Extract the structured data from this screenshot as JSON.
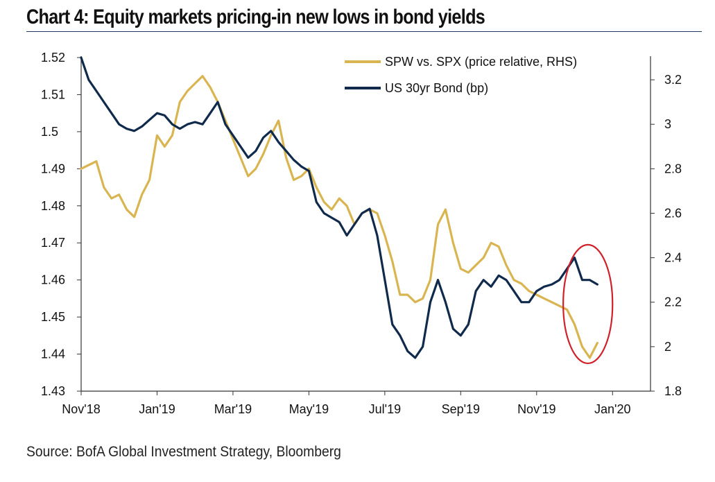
{
  "title": "Chart 4: Equity markets pricing-in new lows in bond yields",
  "source": "Source: BofA Global Investment Strategy, Bloomberg",
  "colors": {
    "spw_series": "#d9b552",
    "bond_series": "#102a4c",
    "highlight_circle": "#d0212b",
    "axis": "#333333",
    "title_rule": "#1f3b60"
  },
  "chart_data": {
    "type": "line",
    "title": "Chart 4: Equity markets pricing-in new lows in bond yields",
    "legend_position": "top-right",
    "grid": false,
    "x_axis": {
      "ticks": [
        "Nov'18",
        "Jan'19",
        "Mar'19",
        "May'19",
        "Jul'19",
        "Sep'19",
        "Nov'19",
        "Jan'20"
      ],
      "range": [
        "Nov'18",
        "Jan'20"
      ]
    },
    "y_left": {
      "range": [
        1.43,
        1.52
      ],
      "ticks": [
        "1.43",
        "1.44",
        "1.45",
        "1.46",
        "1.47",
        "1.48",
        "1.49",
        "1.5",
        "1.51",
        "1.52"
      ]
    },
    "y_right": {
      "range": [
        1.8,
        3.3
      ],
      "ticks": [
        "1.8",
        "2",
        "2.2",
        "2.4",
        "2.6",
        "2.8",
        "3",
        "3.2"
      ]
    },
    "annotation": {
      "type": "ellipse",
      "color": "#d0212b",
      "x_range": [
        12.7,
        14.0
      ],
      "y_left_range": [
        1.4375,
        1.4695
      ]
    },
    "series": [
      {
        "name": "SPW vs.  SPX (price relative, RHS)",
        "axis": "left",
        "color": "#d9b552",
        "x": [
          0.0,
          0.2,
          0.4,
          0.6,
          0.8,
          1.0,
          1.2,
          1.4,
          1.6,
          1.8,
          2.0,
          2.2,
          2.4,
          2.6,
          2.8,
          3.0,
          3.2,
          3.4,
          3.6,
          3.8,
          4.0,
          4.2,
          4.4,
          4.6,
          4.8,
          5.0,
          5.2,
          5.4,
          5.6,
          5.8,
          6.0,
          6.2,
          6.4,
          6.6,
          6.8,
          7.0,
          7.2,
          7.4,
          7.6,
          7.8,
          8.0,
          8.2,
          8.4,
          8.6,
          8.8,
          9.0,
          9.2,
          9.4,
          9.6,
          9.8,
          10.0,
          10.2,
          10.4,
          10.6,
          10.8,
          11.0,
          11.2,
          11.4,
          11.6,
          11.8,
          12.0,
          12.2,
          12.4,
          12.6,
          12.8,
          13.0,
          13.2,
          13.4,
          13.6
        ],
        "values": [
          1.49,
          1.491,
          1.492,
          1.485,
          1.482,
          1.483,
          1.479,
          1.477,
          1.483,
          1.487,
          1.499,
          1.496,
          1.499,
          1.508,
          1.511,
          1.513,
          1.515,
          1.512,
          1.508,
          1.503,
          1.498,
          1.493,
          1.488,
          1.49,
          1.494,
          1.499,
          1.503,
          1.493,
          1.487,
          1.488,
          1.49,
          1.485,
          1.481,
          1.479,
          1.482,
          1.48,
          1.475,
          1.478,
          1.479,
          1.478,
          1.472,
          1.465,
          1.456,
          1.456,
          1.454,
          1.455,
          1.46,
          1.475,
          1.479,
          1.47,
          1.463,
          1.462,
          1.464,
          1.466,
          1.47,
          1.469,
          1.464,
          1.46,
          1.459,
          1.457,
          1.456,
          1.455,
          1.454,
          1.453,
          1.452,
          1.448,
          1.442,
          1.439,
          1.443
        ]
      },
      {
        "name": "US 30yr Bond (bp)",
        "axis": "right",
        "color": "#102a4c",
        "x": [
          0.0,
          0.2,
          0.4,
          0.6,
          0.8,
          1.0,
          1.2,
          1.4,
          1.6,
          1.8,
          2.0,
          2.2,
          2.4,
          2.6,
          2.8,
          3.0,
          3.2,
          3.4,
          3.6,
          3.8,
          4.0,
          4.2,
          4.4,
          4.6,
          4.8,
          5.0,
          5.2,
          5.4,
          5.6,
          5.8,
          6.0,
          6.2,
          6.4,
          6.6,
          6.8,
          7.0,
          7.2,
          7.4,
          7.6,
          7.8,
          8.0,
          8.2,
          8.4,
          8.6,
          8.8,
          9.0,
          9.2,
          9.4,
          9.6,
          9.8,
          10.0,
          10.2,
          10.4,
          10.6,
          10.8,
          11.0,
          11.2,
          11.4,
          11.6,
          11.8,
          12.0,
          12.2,
          12.4,
          12.6,
          12.8,
          13.0,
          13.2,
          13.4,
          13.6
        ],
        "values": [
          3.3,
          3.2,
          3.15,
          3.1,
          3.05,
          3.0,
          2.98,
          2.97,
          2.99,
          3.02,
          3.05,
          3.04,
          3.0,
          2.98,
          3.0,
          3.01,
          3.0,
          3.05,
          3.1,
          3.0,
          2.95,
          2.9,
          2.85,
          2.88,
          2.94,
          2.97,
          2.92,
          2.88,
          2.84,
          2.81,
          2.79,
          2.65,
          2.6,
          2.58,
          2.56,
          2.5,
          2.55,
          2.6,
          2.62,
          2.5,
          2.3,
          2.1,
          2.05,
          1.98,
          1.95,
          2.0,
          2.2,
          2.3,
          2.2,
          2.08,
          2.05,
          2.1,
          2.25,
          2.3,
          2.27,
          2.32,
          2.3,
          2.25,
          2.2,
          2.2,
          2.25,
          2.27,
          2.28,
          2.3,
          2.35,
          2.4,
          2.3,
          2.3,
          2.28
        ]
      }
    ]
  }
}
